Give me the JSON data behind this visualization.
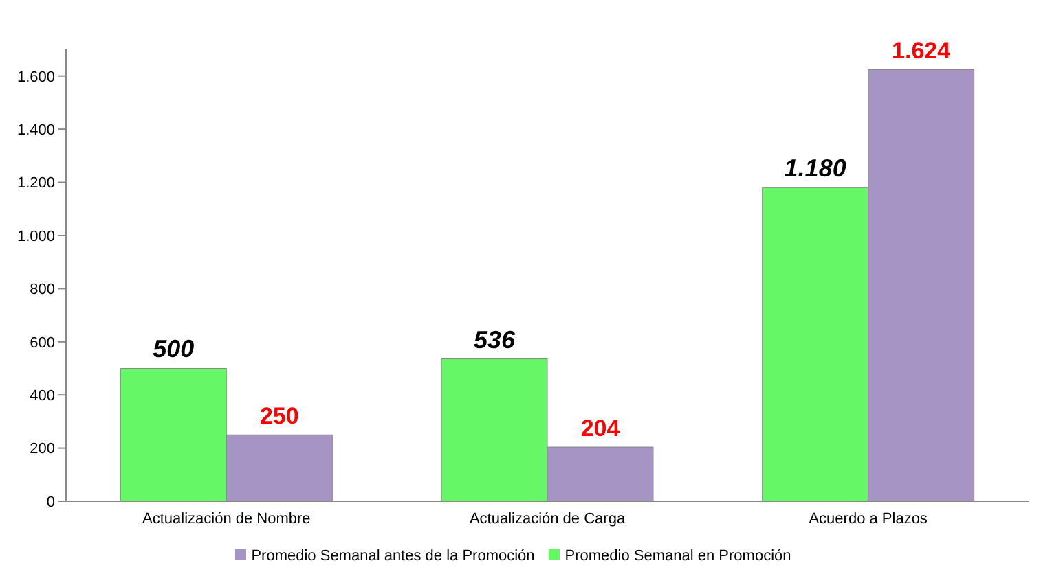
{
  "chart_data": {
    "type": "bar",
    "categories": [
      "Actualización de Nombre",
      "Actualización de Carga",
      "Acuerdo a Plazos"
    ],
    "series": [
      {
        "name": "Promedio Semanal en Promoción",
        "color": "#66f766",
        "values": [
          500,
          536,
          1180
        ],
        "value_labels": [
          "500",
          "536",
          "1.180"
        ]
      },
      {
        "name": "Promedio Semanal antes de la Promoción",
        "color": "#a594c4",
        "values": [
          250,
          204,
          1624
        ],
        "value_labels": [
          "250",
          "204",
          "1.624"
        ]
      }
    ],
    "ylim": [
      0,
      1700
    ],
    "yticks": [
      0,
      200,
      400,
      600,
      800,
      {
        "value": 1000,
        "label": "1.000"
      },
      {
        "value": 1200,
        "label": "1.200"
      },
      {
        "value": 1400,
        "label": "1.400"
      },
      {
        "value": 1600,
        "label": "1.600"
      }
    ],
    "grid": false,
    "legend": "bottom"
  }
}
